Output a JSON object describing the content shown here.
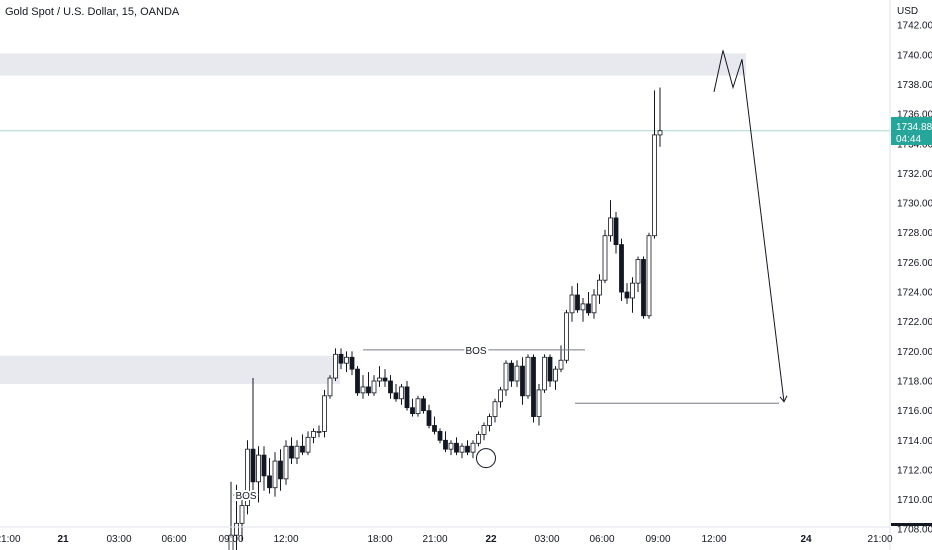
{
  "header": {
    "title": "Gold Spot / U.S. Dollar, 15, OANDA"
  },
  "price_axis": {
    "currency": "USD"
  },
  "price_badge": {
    "price": "1734.880",
    "countdown": "04:44",
    "color": "#26a69a"
  },
  "chart_data": {
    "type": "candlestick",
    "title": "Gold Spot / U.S. Dollar, 15, OANDA",
    "ylabel": "USD",
    "ylim": [
      1706.6,
      1743.7
    ],
    "y_ticks": [
      "1742.000",
      "1740.000",
      "1738.000",
      "1736.000",
      "1734.000",
      "1732.000",
      "1730.000",
      "1728.000",
      "1726.000",
      "1724.000",
      "1722.000",
      "1720.000",
      "1718.000",
      "1716.000",
      "1714.000",
      "1712.000",
      "1710.000",
      "1708.000"
    ],
    "x_ticks": [
      "21:00",
      "21",
      "03:00",
      "06:00",
      "09:00",
      "12:00",
      "18:00",
      "21:00",
      "22",
      "03:00",
      "06:00",
      "09:00",
      "12:00",
      "24",
      "21:00"
    ],
    "candles": [
      {
        "o": 1706.4,
        "h": 1711.2,
        "l": 1706.4,
        "c": 1707.6
      },
      {
        "o": 1707.6,
        "h": 1711.0,
        "l": 1706.6,
        "c": 1708.4
      },
      {
        "o": 1708.4,
        "h": 1710.6,
        "l": 1707.2,
        "c": 1709.6
      },
      {
        "o": 1709.6,
        "h": 1714.0,
        "l": 1709.0,
        "c": 1713.4
      },
      {
        "o": 1713.4,
        "h": 1718.2,
        "l": 1710.4,
        "c": 1711.2
      },
      {
        "o": 1711.2,
        "h": 1713.6,
        "l": 1709.8,
        "c": 1713.0
      },
      {
        "o": 1713.0,
        "h": 1713.6,
        "l": 1710.6,
        "c": 1711.6
      },
      {
        "o": 1711.6,
        "h": 1712.8,
        "l": 1710.4,
        "c": 1710.8
      },
      {
        "o": 1710.8,
        "h": 1713.2,
        "l": 1710.2,
        "c": 1712.6
      },
      {
        "o": 1712.6,
        "h": 1713.4,
        "l": 1710.6,
        "c": 1711.4
      },
      {
        "o": 1711.4,
        "h": 1714.0,
        "l": 1711.0,
        "c": 1713.6
      },
      {
        "o": 1713.6,
        "h": 1714.2,
        "l": 1712.4,
        "c": 1712.8
      },
      {
        "o": 1712.8,
        "h": 1714.0,
        "l": 1712.4,
        "c": 1713.6
      },
      {
        "o": 1713.6,
        "h": 1714.4,
        "l": 1713.0,
        "c": 1713.2
      },
      {
        "o": 1713.2,
        "h": 1714.6,
        "l": 1713.0,
        "c": 1714.2
      },
      {
        "o": 1714.2,
        "h": 1714.8,
        "l": 1713.8,
        "c": 1714.6
      },
      {
        "o": 1714.6,
        "h": 1715.0,
        "l": 1714.2,
        "c": 1714.6
      },
      {
        "o": 1714.6,
        "h": 1717.4,
        "l": 1714.2,
        "c": 1717.0
      },
      {
        "o": 1717.0,
        "h": 1718.4,
        "l": 1716.8,
        "c": 1718.2
      },
      {
        "o": 1718.2,
        "h": 1720.2,
        "l": 1718.0,
        "c": 1719.8
      },
      {
        "o": 1719.8,
        "h": 1720.2,
        "l": 1718.8,
        "c": 1719.2
      },
      {
        "o": 1719.2,
        "h": 1720.0,
        "l": 1718.6,
        "c": 1719.6
      },
      {
        "o": 1719.6,
        "h": 1720.0,
        "l": 1718.4,
        "c": 1718.8
      },
      {
        "o": 1718.8,
        "h": 1719.0,
        "l": 1717.0,
        "c": 1717.2
      },
      {
        "o": 1717.2,
        "h": 1718.4,
        "l": 1716.8,
        "c": 1717.6
      },
      {
        "o": 1717.6,
        "h": 1718.6,
        "l": 1717.0,
        "c": 1717.2
      },
      {
        "o": 1717.2,
        "h": 1718.4,
        "l": 1717.0,
        "c": 1718.0
      },
      {
        "o": 1718.0,
        "h": 1719.0,
        "l": 1717.6,
        "c": 1718.2
      },
      {
        "o": 1718.2,
        "h": 1718.8,
        "l": 1717.6,
        "c": 1718.0
      },
      {
        "o": 1718.0,
        "h": 1718.4,
        "l": 1716.8,
        "c": 1717.2
      },
      {
        "o": 1717.2,
        "h": 1717.8,
        "l": 1716.6,
        "c": 1716.8
      },
      {
        "o": 1716.8,
        "h": 1717.8,
        "l": 1716.4,
        "c": 1717.6
      },
      {
        "o": 1717.6,
        "h": 1718.0,
        "l": 1716.0,
        "c": 1716.2
      },
      {
        "o": 1716.2,
        "h": 1716.8,
        "l": 1715.6,
        "c": 1715.8
      },
      {
        "o": 1715.8,
        "h": 1717.0,
        "l": 1715.6,
        "c": 1716.8
      },
      {
        "o": 1716.8,
        "h": 1717.0,
        "l": 1715.8,
        "c": 1716.0
      },
      {
        "o": 1716.0,
        "h": 1716.4,
        "l": 1714.8,
        "c": 1715.0
      },
      {
        "o": 1715.0,
        "h": 1715.6,
        "l": 1714.4,
        "c": 1714.6
      },
      {
        "o": 1714.6,
        "h": 1714.8,
        "l": 1713.8,
        "c": 1714.0
      },
      {
        "o": 1714.0,
        "h": 1714.6,
        "l": 1713.2,
        "c": 1713.4
      },
      {
        "o": 1713.4,
        "h": 1714.0,
        "l": 1713.0,
        "c": 1713.8
      },
      {
        "o": 1713.8,
        "h": 1714.2,
        "l": 1713.0,
        "c": 1713.2
      },
      {
        "o": 1713.2,
        "h": 1713.8,
        "l": 1712.8,
        "c": 1713.6
      },
      {
        "o": 1713.6,
        "h": 1714.0,
        "l": 1713.0,
        "c": 1713.2
      },
      {
        "o": 1713.2,
        "h": 1714.0,
        "l": 1712.8,
        "c": 1713.8
      },
      {
        "o": 1713.8,
        "h": 1714.6,
        "l": 1713.6,
        "c": 1714.4
      },
      {
        "o": 1714.4,
        "h": 1715.2,
        "l": 1714.0,
        "c": 1715.0
      },
      {
        "o": 1715.0,
        "h": 1715.8,
        "l": 1714.6,
        "c": 1715.6
      },
      {
        "o": 1715.6,
        "h": 1716.8,
        "l": 1715.2,
        "c": 1716.6
      },
      {
        "o": 1716.6,
        "h": 1717.6,
        "l": 1716.2,
        "c": 1717.4
      },
      {
        "o": 1717.4,
        "h": 1719.4,
        "l": 1717.0,
        "c": 1719.2
      },
      {
        "o": 1719.2,
        "h": 1719.4,
        "l": 1717.6,
        "c": 1718.0
      },
      {
        "o": 1718.0,
        "h": 1719.4,
        "l": 1717.6,
        "c": 1719.0
      },
      {
        "o": 1719.0,
        "h": 1719.6,
        "l": 1716.4,
        "c": 1717.0
      },
      {
        "o": 1717.0,
        "h": 1719.8,
        "l": 1716.8,
        "c": 1719.6
      },
      {
        "o": 1719.6,
        "h": 1719.8,
        "l": 1715.2,
        "c": 1715.6
      },
      {
        "o": 1715.6,
        "h": 1717.8,
        "l": 1715.0,
        "c": 1717.4
      },
      {
        "o": 1717.4,
        "h": 1719.8,
        "l": 1717.2,
        "c": 1719.6
      },
      {
        "o": 1719.6,
        "h": 1719.8,
        "l": 1717.6,
        "c": 1718.0
      },
      {
        "o": 1718.0,
        "h": 1719.0,
        "l": 1717.4,
        "c": 1718.8
      },
      {
        "o": 1718.8,
        "h": 1720.4,
        "l": 1718.6,
        "c": 1719.4
      },
      {
        "o": 1719.4,
        "h": 1722.8,
        "l": 1719.2,
        "c": 1722.6
      },
      {
        "o": 1722.6,
        "h": 1724.4,
        "l": 1722.0,
        "c": 1723.8
      },
      {
        "o": 1723.8,
        "h": 1724.6,
        "l": 1722.6,
        "c": 1722.8
      },
      {
        "o": 1722.8,
        "h": 1723.6,
        "l": 1722.0,
        "c": 1723.2
      },
      {
        "o": 1723.2,
        "h": 1724.0,
        "l": 1722.4,
        "c": 1722.6
      },
      {
        "o": 1722.6,
        "h": 1724.2,
        "l": 1722.2,
        "c": 1723.8
      },
      {
        "o": 1723.8,
        "h": 1725.2,
        "l": 1723.2,
        "c": 1724.8
      },
      {
        "o": 1724.8,
        "h": 1728.2,
        "l": 1724.6,
        "c": 1727.8
      },
      {
        "o": 1727.8,
        "h": 1730.2,
        "l": 1727.4,
        "c": 1729.0
      },
      {
        "o": 1729.0,
        "h": 1729.4,
        "l": 1726.6,
        "c": 1727.2
      },
      {
        "o": 1727.2,
        "h": 1727.6,
        "l": 1723.4,
        "c": 1724.0
      },
      {
        "o": 1724.0,
        "h": 1724.6,
        "l": 1723.2,
        "c": 1723.6
      },
      {
        "o": 1723.6,
        "h": 1725.0,
        "l": 1722.6,
        "c": 1724.6
      },
      {
        "o": 1724.6,
        "h": 1726.4,
        "l": 1724.0,
        "c": 1726.2
      },
      {
        "o": 1726.2,
        "h": 1726.4,
        "l": 1722.2,
        "c": 1722.4
      },
      {
        "o": 1722.4,
        "h": 1728.0,
        "l": 1722.2,
        "c": 1727.8
      },
      {
        "o": 1727.8,
        "h": 1737.6,
        "l": 1727.6,
        "c": 1734.6
      },
      {
        "o": 1734.6,
        "h": 1737.8,
        "l": 1733.8,
        "c": 1734.88
      }
    ],
    "zones": [
      {
        "name": "supply-zone",
        "from": 1738.6,
        "to": 1740.1
      },
      {
        "name": "demand-zone",
        "from": 1717.8,
        "to": 1719.7
      }
    ],
    "current_price": 1734.88,
    "annotations": [
      {
        "text": "BOS",
        "price": 1720.1
      },
      {
        "text": "BOS",
        "price": 1710.3
      }
    ],
    "projection_path": [
      1737.5,
      1740.3,
      1737.8,
      1739.7,
      1716.6
    ],
    "marker_circle_price": 1712.8
  }
}
